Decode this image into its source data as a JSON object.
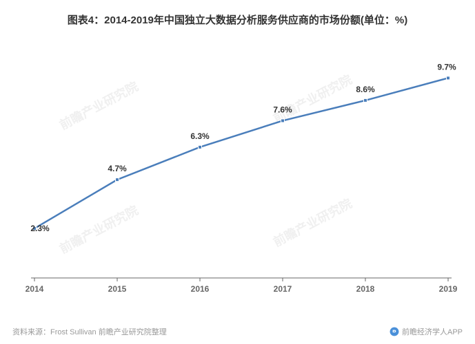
{
  "title": "图表4：2014-2019年中国独立大数据分析服务供应商的市场份额(单位：%)",
  "chart": {
    "type": "line",
    "categories": [
      "2014",
      "2015",
      "2016",
      "2017",
      "2018",
      "2019"
    ],
    "values": [
      2.3,
      4.7,
      6.3,
      7.6,
      8.6,
      9.7
    ],
    "value_labels": [
      "2.3%",
      "4.7%",
      "6.3%",
      "7.6%",
      "8.6%",
      "9.7%"
    ],
    "ylim": [
      0,
      11
    ],
    "line_color": "#4a7ebb",
    "line_width": 2.5,
    "marker_fill": "#4a7ebb",
    "marker_border": "#ffffff",
    "marker_size": 5,
    "background_color": "#ffffff",
    "label_fontsize": 12,
    "label_color": "#333333",
    "xaxis_color": "#666666",
    "tick_color": "#666666"
  },
  "watermark_text": "前瞻产业研究院",
  "source_label": "资料来源：",
  "source_text": "Frost Sullivan 前瞻产业研究院整理",
  "app_label": "前瞻经济学人APP",
  "app_icon_color": "#4a90d9"
}
